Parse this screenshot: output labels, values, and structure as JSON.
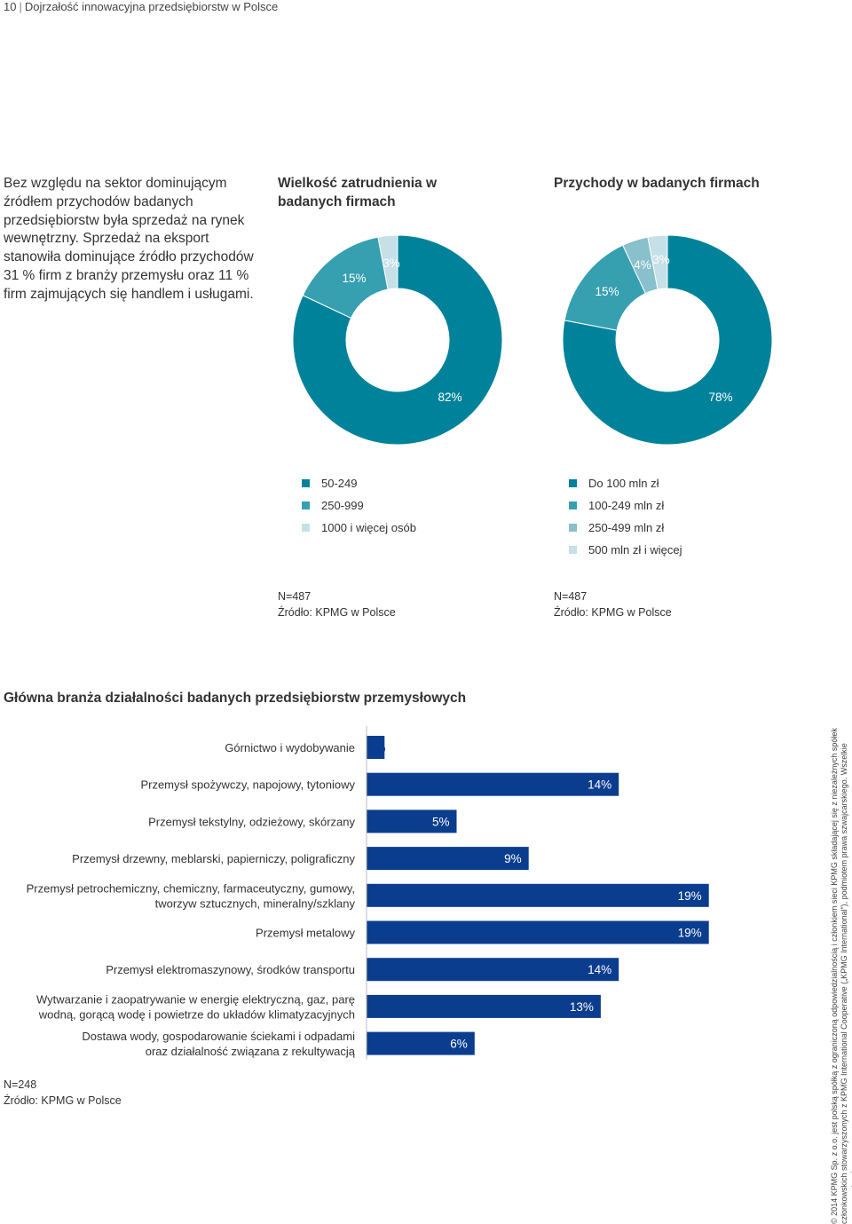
{
  "header": {
    "page_number": "10",
    "title": "Dojrzałość innowacyjna przedsiębiorstw w Polsce"
  },
  "intro_text": "Bez względu na sektor dominującym źródłem przychodów badanych przedsiębiorstw była sprzedaż na rynek wewnętrzny. Sprzedaż na eksport stanowiła dominujące źródło przychodów 31 % firm z branży przemysłu oraz 11 % firm zajmujących się handlem i usługami.",
  "colors": {
    "dark": "#00829a",
    "mid": "#36a0b1",
    "light": "#88c0cc",
    "pale": "#c5e0e7",
    "bar": "#0b3d8f"
  },
  "chart_data": [
    {
      "type": "pie",
      "title": "Wielkość zatrudnienia w badanych firmach",
      "slices": [
        {
          "label": "50-249",
          "value": 82,
          "label_text": "82%",
          "color": "#00829a"
        },
        {
          "label": "250-999",
          "value": 15,
          "label_text": "15%",
          "color": "#36a0b1"
        },
        {
          "label": "1000 i więcej osób",
          "value": 3,
          "label_text": "3%",
          "color": "#c5e0e7"
        }
      ],
      "note": "N=487",
      "source": "Źródło: KPMG w Polsce"
    },
    {
      "type": "pie",
      "title": "Przychody w badanych firmach",
      "slices": [
        {
          "label": "Do 100 mln zł",
          "value": 78,
          "label_text": "78%",
          "color": "#00829a"
        },
        {
          "label": "100-249 mln zł",
          "value": 15,
          "label_text": "15%",
          "color": "#36a0b1"
        },
        {
          "label": "250-499 mln zł",
          "value": 4,
          "label_text": "4%",
          "color": "#88c0cc"
        },
        {
          "label": "500 mln zł i więcej",
          "value": 3,
          "label_text": "3%",
          "color": "#c5e0e7"
        }
      ],
      "note": "N=487",
      "source": "Źródło: KPMG w Polsce"
    },
    {
      "type": "bar",
      "orientation": "horizontal",
      "title": "Główna branża działalności badanych przedsiębiorstw przemysłowych",
      "categories": [
        [
          "Górnictwo i wydobywanie"
        ],
        [
          "Przemysł spożywczy, napojowy, tytoniowy"
        ],
        [
          "Przemysł tekstylny, odzieżowy, skórzany"
        ],
        [
          "Przemysł drzewny, meblarski, papierniczy, poligraficzny"
        ],
        [
          "Przemysł petrochemiczny, chemiczny, farmaceutyczny, gumowy,",
          "tworzyw sztucznych, mineralny/szklany"
        ],
        [
          "Przemysł metalowy"
        ],
        [
          "Przemysł elektromaszynowy, środków transportu"
        ],
        [
          "Wytwarzanie i zaopatrywanie w energię elektryczną, gaz, parę",
          "wodną, gorącą wodę i powietrze do układów klimatyzacyjnych"
        ],
        [
          "Dostawa wody, gospodarowanie ściekami i odpadami",
          "oraz działalność związana z rekultywacją"
        ]
      ],
      "values": [
        1,
        14,
        5,
        9,
        19,
        19,
        14,
        13,
        6
      ],
      "value_labels": [
        "1%",
        "14%",
        "5%",
        "9%",
        "19%",
        "19%",
        "14%",
        "13%",
        "6%"
      ],
      "note": "N=248",
      "source": "Źródło: KPMG w Polsce"
    }
  ],
  "copyright": "© 2014 KPMG Sp. z o.o. jest polską spółką z ograniczoną odpowiedzialnością i członkiem sieci KPMG składającej się z niezależnych spółek członkowskich stowarzyszonych z KPMG International Cooperative („KPMG International”), podmiotem prawa szwajcarskiego. Wszelkie prawa zastrzeżone."
}
